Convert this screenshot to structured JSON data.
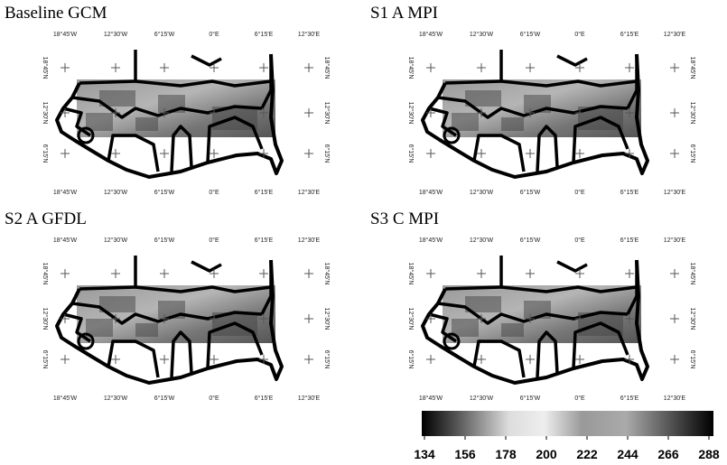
{
  "panels": [
    {
      "title": "Baseline GCM"
    },
    {
      "title": "S1 A MPI"
    },
    {
      "title": "S2 A GFDL"
    },
    {
      "title": "S3 C MPI"
    }
  ],
  "longitude_labels": [
    "18°45'W",
    "12°30'W",
    "6°15'W",
    "0°E",
    "6°15'E",
    "12°30'E"
  ],
  "latitude_labels": [
    "18°45'N",
    "12°30'N",
    "6°15'N"
  ],
  "colorbar": {
    "ticks": [
      134,
      156,
      178,
      200,
      222,
      244,
      266,
      288
    ]
  }
}
